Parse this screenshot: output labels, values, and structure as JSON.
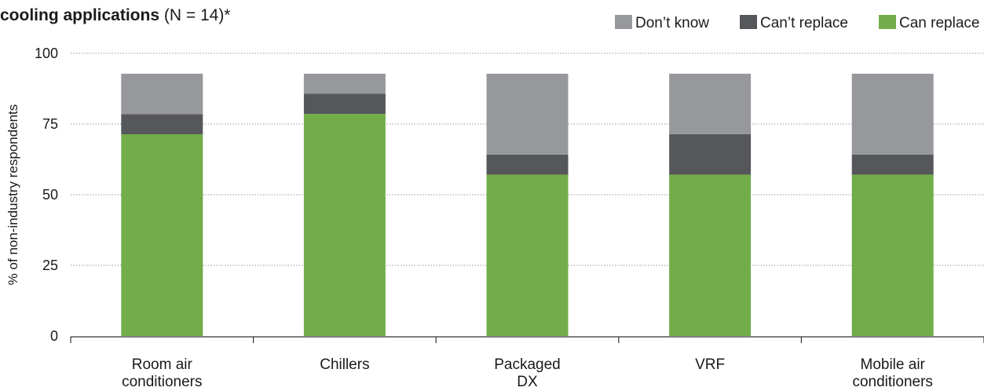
{
  "chart_data": {
    "type": "bar",
    "stacked": true,
    "title_bold": "cooling applications",
    "title_rest": " (N = 14)*",
    "ylabel": "% of non-industry respondents",
    "ylim": [
      0,
      100
    ],
    "yticks": [
      0,
      25,
      50,
      75,
      100
    ],
    "grid": true,
    "legend_position": "top-right",
    "categories": [
      [
        "Room air",
        "conditioners"
      ],
      [
        "Chillers"
      ],
      [
        "Packaged",
        "DX"
      ],
      [
        "VRF"
      ],
      [
        "Mobile air",
        "conditioners"
      ]
    ],
    "legend_order": [
      "Don’t know",
      "Can’t replace",
      "Can replace"
    ],
    "series": [
      {
        "name": "Can replace",
        "color": "#72ad4a",
        "values": [
          71.4,
          78.6,
          57.1,
          57.1,
          57.1
        ]
      },
      {
        "name": "Can’t replace",
        "color": "#56575b",
        "values": [
          7.1,
          7.1,
          7.1,
          14.3,
          7.1
        ]
      },
      {
        "name": "Don’t know",
        "color": "#97989c",
        "values": [
          14.3,
          7.1,
          28.6,
          21.4,
          28.6
        ]
      }
    ]
  }
}
